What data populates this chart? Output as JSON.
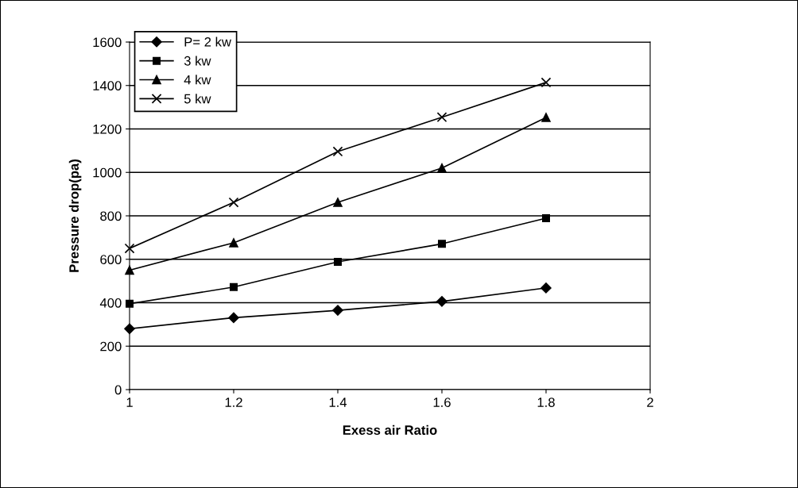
{
  "chart_data": {
    "type": "line",
    "xlabel": "Exess air Ratio",
    "ylabel": "Pressure drop(pa)",
    "x": [
      1,
      1.2,
      1.4,
      1.6,
      1.8
    ],
    "series": [
      {
        "name": "P= 2 kw",
        "color": "#000000",
        "marker": "diamond",
        "values": [
          280,
          331,
          365,
          406,
          468
        ]
      },
      {
        "name": "3 kw",
        "color": "#000000",
        "marker": "square",
        "values": [
          395,
          472,
          588,
          671,
          789
        ]
      },
      {
        "name": "4 kw",
        "color": "#000000",
        "marker": "triangle",
        "values": [
          550,
          676,
          862,
          1020,
          1253
        ]
      },
      {
        "name": "5 kw",
        "color": "#000000",
        "marker": "cross",
        "values": [
          650,
          862,
          1096,
          1254,
          1414
        ]
      }
    ],
    "xlim": [
      1,
      2
    ],
    "xticks": [
      1,
      1.2,
      1.4,
      1.6,
      1.8,
      2
    ],
    "ylim": [
      0,
      1600
    ],
    "yticks": [
      0,
      200,
      400,
      600,
      800,
      1000,
      1200,
      1400,
      1600
    ],
    "grid": "y",
    "legend": "top left",
    "line_style": "solid"
  }
}
